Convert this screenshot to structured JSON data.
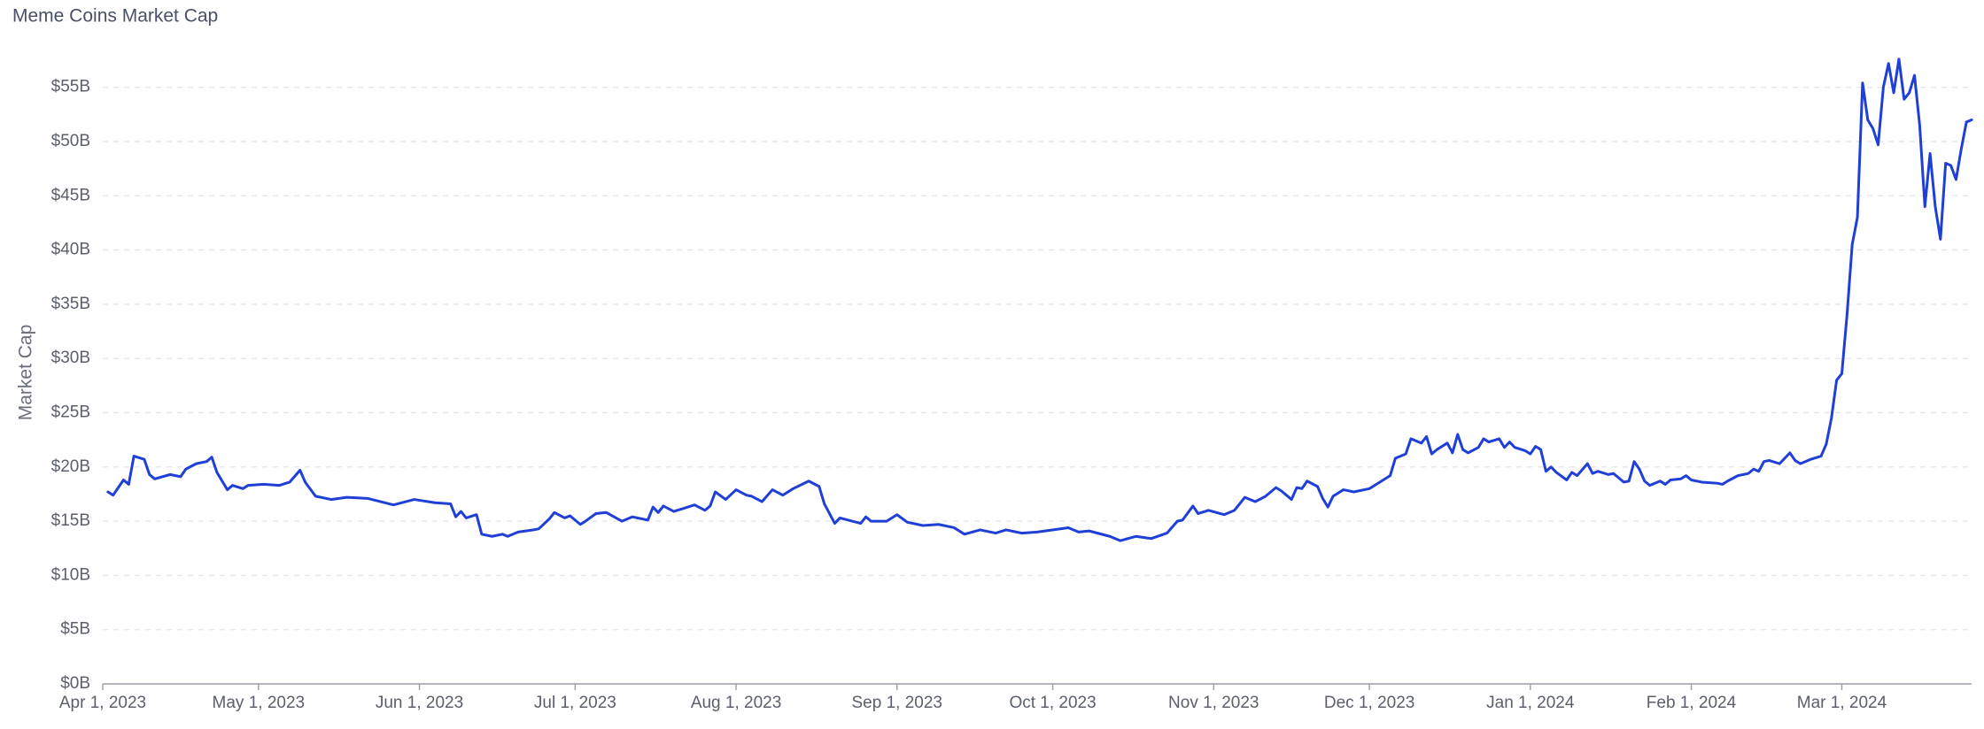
{
  "chart_data": {
    "type": "line",
    "title": "Meme Coins Market Cap",
    "y_label": "Market Cap",
    "grid": true,
    "xlim": [
      "2023-04-01",
      "2024-03-26"
    ],
    "ylim": [
      0,
      60
    ],
    "xticks": [
      {
        "value": "2023-04-01",
        "label": "Apr 1, 2023"
      },
      {
        "value": "2023-05-01",
        "label": "May 1, 2023"
      },
      {
        "value": "2023-06-01",
        "label": "Jun 1, 2023"
      },
      {
        "value": "2023-07-01",
        "label": "Jul 1, 2023"
      },
      {
        "value": "2023-08-01",
        "label": "Aug 1, 2023"
      },
      {
        "value": "2023-09-01",
        "label": "Sep 1, 2023"
      },
      {
        "value": "2023-10-01",
        "label": "Oct 1, 2023"
      },
      {
        "value": "2023-11-01",
        "label": "Nov 1, 2023"
      },
      {
        "value": "2023-12-01",
        "label": "Dec 1, 2023"
      },
      {
        "value": "2024-01-01",
        "label": "Jan 1, 2024"
      },
      {
        "value": "2024-02-01",
        "label": "Feb 1, 2024"
      },
      {
        "value": "2024-03-01",
        "label": "Mar 1, 2024"
      }
    ],
    "yticks": [
      {
        "value": 0,
        "label": "$0B"
      },
      {
        "value": 5,
        "label": "$5B"
      },
      {
        "value": 10,
        "label": "$10B"
      },
      {
        "value": 15,
        "label": "$15B"
      },
      {
        "value": 20,
        "label": "$20B"
      },
      {
        "value": 25,
        "label": "$25B"
      },
      {
        "value": 30,
        "label": "$30B"
      },
      {
        "value": 35,
        "label": "$35B"
      },
      {
        "value": 40,
        "label": "$40B"
      },
      {
        "value": 45,
        "label": "$45B"
      },
      {
        "value": 50,
        "label": "$50B"
      },
      {
        "value": 55,
        "label": "$55B"
      }
    ],
    "x": [
      "2023-04-02",
      "2023-04-03",
      "2023-04-05",
      "2023-04-06",
      "2023-04-07",
      "2023-04-09",
      "2023-04-10",
      "2023-04-11",
      "2023-04-14",
      "2023-04-16",
      "2023-04-17",
      "2023-04-19",
      "2023-04-21",
      "2023-04-22",
      "2023-04-23",
      "2023-04-25",
      "2023-04-26",
      "2023-04-28",
      "2023-04-29",
      "2023-05-02",
      "2023-05-05",
      "2023-05-07",
      "2023-05-09",
      "2023-05-10",
      "2023-05-12",
      "2023-05-15",
      "2023-05-18",
      "2023-05-22",
      "2023-05-27",
      "2023-05-31",
      "2023-06-04",
      "2023-06-07",
      "2023-06-08",
      "2023-06-09",
      "2023-06-10",
      "2023-06-12",
      "2023-06-13",
      "2023-06-15",
      "2023-06-17",
      "2023-06-18",
      "2023-06-20",
      "2023-06-23",
      "2023-06-24",
      "2023-06-26",
      "2023-06-27",
      "2023-06-29",
      "2023-06-30",
      "2023-07-02",
      "2023-07-03",
      "2023-07-05",
      "2023-07-07",
      "2023-07-10",
      "2023-07-12",
      "2023-07-15",
      "2023-07-16",
      "2023-07-17",
      "2023-07-18",
      "2023-07-20",
      "2023-07-22",
      "2023-07-24",
      "2023-07-26",
      "2023-07-27",
      "2023-07-28",
      "2023-07-30",
      "2023-08-01",
      "2023-08-03",
      "2023-08-04",
      "2023-08-06",
      "2023-08-08",
      "2023-08-10",
      "2023-08-12",
      "2023-08-15",
      "2023-08-17",
      "2023-08-18",
      "2023-08-20",
      "2023-08-21",
      "2023-08-25",
      "2023-08-26",
      "2023-08-27",
      "2023-08-30",
      "2023-09-01",
      "2023-09-03",
      "2023-09-06",
      "2023-09-09",
      "2023-09-12",
      "2023-09-14",
      "2023-09-17",
      "2023-09-20",
      "2023-09-22",
      "2023-09-25",
      "2023-09-28",
      "2023-10-04",
      "2023-10-06",
      "2023-10-08",
      "2023-10-12",
      "2023-10-14",
      "2023-10-17",
      "2023-10-20",
      "2023-10-23",
      "2023-10-25",
      "2023-10-26",
      "2023-10-28",
      "2023-10-29",
      "2023-10-31",
      "2023-11-03",
      "2023-11-05",
      "2023-11-07",
      "2023-11-09",
      "2023-11-11",
      "2023-11-13",
      "2023-11-14",
      "2023-11-16",
      "2023-11-17",
      "2023-11-18",
      "2023-11-19",
      "2023-11-21",
      "2023-11-22",
      "2023-11-23",
      "2023-11-24",
      "2023-11-26",
      "2023-11-28",
      "2023-12-01",
      "2023-12-03",
      "2023-12-05",
      "2023-12-06",
      "2023-12-08",
      "2023-12-09",
      "2023-12-11",
      "2023-12-12",
      "2023-12-13",
      "2023-12-14",
      "2023-12-16",
      "2023-12-17",
      "2023-12-18",
      "2023-12-19",
      "2023-12-20",
      "2023-12-22",
      "2023-12-23",
      "2023-12-24",
      "2023-12-26",
      "2023-12-27",
      "2023-12-28",
      "2023-12-29",
      "2023-12-31",
      "2024-01-01",
      "2024-01-02",
      "2024-01-03",
      "2024-01-04",
      "2024-01-05",
      "2024-01-06",
      "2024-01-08",
      "2024-01-09",
      "2024-01-10",
      "2024-01-12",
      "2024-01-13",
      "2024-01-14",
      "2024-01-16",
      "2024-01-17",
      "2024-01-19",
      "2024-01-20",
      "2024-01-21",
      "2024-01-22",
      "2024-01-23",
      "2024-01-24",
      "2024-01-26",
      "2024-01-27",
      "2024-01-28",
      "2024-01-30",
      "2024-01-31",
      "2024-02-01",
      "2024-02-03",
      "2024-02-06",
      "2024-02-07",
      "2024-02-08",
      "2024-02-10",
      "2024-02-12",
      "2024-02-13",
      "2024-02-14",
      "2024-02-15",
      "2024-02-16",
      "2024-02-18",
      "2024-02-20",
      "2024-02-21",
      "2024-02-22",
      "2024-02-24",
      "2024-02-26",
      "2024-02-27",
      "2024-02-28",
      "2024-02-29",
      "2024-03-01",
      "2024-03-02",
      "2024-03-03",
      "2024-03-04",
      "2024-03-05",
      "2024-03-06",
      "2024-03-07",
      "2024-03-08",
      "2024-03-09",
      "2024-03-10",
      "2024-03-11",
      "2024-03-12",
      "2024-03-13",
      "2024-03-14",
      "2024-03-15",
      "2024-03-16",
      "2024-03-17",
      "2024-03-18",
      "2024-03-19",
      "2024-03-20",
      "2024-03-21",
      "2024-03-22",
      "2024-03-23",
      "2024-03-24",
      "2024-03-25",
      "2024-03-26"
    ],
    "series": [
      {
        "name": "Market Cap",
        "color": "#1f3fd6",
        "values": [
          17.7,
          17.4,
          18.8,
          18.4,
          21.0,
          20.7,
          19.3,
          18.9,
          19.3,
          19.1,
          19.8,
          20.3,
          20.5,
          20.9,
          19.5,
          17.9,
          18.3,
          18.0,
          18.3,
          18.4,
          18.3,
          18.6,
          19.7,
          18.6,
          17.3,
          17.0,
          17.2,
          17.1,
          16.5,
          17.0,
          16.7,
          16.6,
          15.4,
          15.9,
          15.3,
          15.6,
          13.8,
          13.6,
          13.8,
          13.6,
          14.0,
          14.2,
          14.3,
          15.2,
          15.8,
          15.3,
          15.5,
          14.7,
          15.0,
          15.7,
          15.8,
          15.0,
          15.4,
          15.1,
          16.3,
          15.8,
          16.4,
          15.9,
          16.2,
          16.5,
          16.0,
          16.4,
          17.7,
          17.0,
          17.9,
          17.4,
          17.3,
          16.8,
          17.9,
          17.4,
          18.0,
          18.7,
          18.2,
          16.6,
          14.8,
          15.3,
          14.8,
          15.4,
          15.0,
          15.0,
          15.6,
          14.9,
          14.6,
          14.7,
          14.4,
          13.8,
          14.2,
          13.9,
          14.2,
          13.9,
          14.0,
          14.4,
          14.0,
          14.1,
          13.6,
          13.2,
          13.6,
          13.4,
          13.9,
          15.0,
          15.1,
          16.4,
          15.7,
          16.0,
          15.6,
          16.0,
          17.2,
          16.8,
          17.3,
          18.1,
          17.8,
          17.0,
          18.1,
          18.0,
          18.7,
          18.2,
          17.1,
          16.3,
          17.3,
          17.9,
          17.7,
          18.0,
          18.6,
          19.2,
          20.8,
          21.2,
          22.6,
          22.2,
          22.8,
          21.2,
          21.6,
          22.2,
          21.3,
          23.0,
          21.6,
          21.3,
          21.8,
          22.6,
          22.3,
          22.6,
          21.8,
          22.3,
          21.8,
          21.5,
          21.2,
          21.9,
          21.6,
          19.6,
          20.0,
          19.5,
          18.8,
          19.5,
          19.2,
          20.3,
          19.4,
          19.6,
          19.3,
          19.4,
          18.6,
          18.7,
          20.5,
          19.8,
          18.7,
          18.3,
          18.7,
          18.4,
          18.8,
          18.9,
          19.2,
          18.8,
          18.6,
          18.5,
          18.4,
          18.7,
          19.2,
          19.4,
          19.8,
          19.6,
          20.5,
          20.6,
          20.3,
          21.3,
          20.6,
          20.3,
          20.7,
          21.0,
          22.1,
          24.5,
          28.0,
          28.6,
          34.0,
          40.5,
          43.0,
          55.4,
          52.0,
          51.2,
          49.7,
          55.0,
          57.2,
          54.5,
          57.6,
          53.9,
          54.5,
          56.1,
          51.5,
          44.0,
          48.9,
          44.0,
          41.0,
          48.0,
          47.8,
          46.5,
          49.3,
          51.8,
          52.0
        ]
      }
    ]
  }
}
